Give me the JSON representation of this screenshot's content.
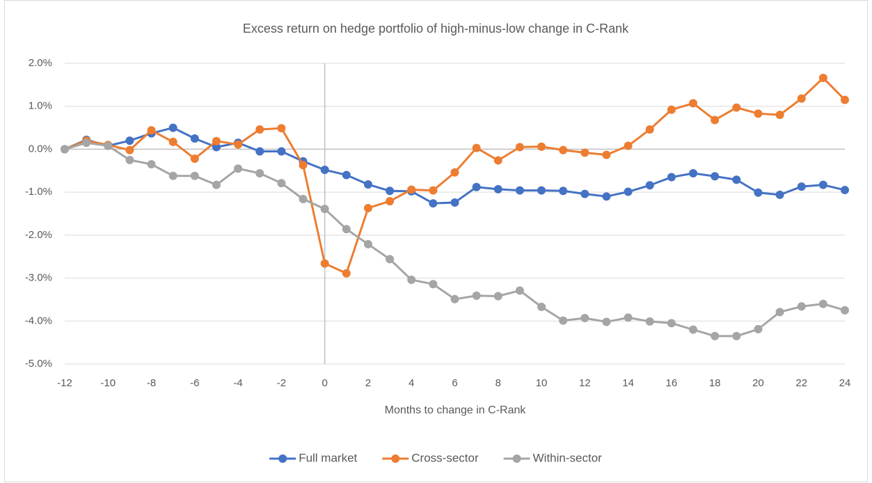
{
  "chart_data": {
    "type": "line",
    "title": "Excess return on hedge portfolio of high-minus-low change in C-Rank",
    "x_label": "Months to change in C-Rank",
    "x": [
      -12,
      -11,
      -10,
      -9,
      -8,
      -7,
      -6,
      -5,
      -4,
      -3,
      -2,
      -1,
      0,
      1,
      2,
      3,
      4,
      5,
      6,
      7,
      8,
      9,
      10,
      11,
      12,
      13,
      14,
      15,
      16,
      17,
      18,
      19,
      20,
      21,
      22,
      23,
      24
    ],
    "series": [
      {
        "name": "Full market",
        "color": "#4472c4",
        "values": [
          0,
          0.22,
          0.08,
          0.2,
          0.37,
          0.5,
          0.25,
          0.05,
          0.15,
          -0.05,
          -0.05,
          -0.28,
          -0.48,
          -0.6,
          -0.82,
          -0.97,
          -0.98,
          -1.26,
          -1.24,
          -0.88,
          -0.93,
          -0.96,
          -0.96,
          -0.97,
          -1.04,
          -1.1,
          -0.99,
          -0.84,
          -0.65,
          -0.56,
          -0.63,
          -0.71,
          -1.01,
          -1.06,
          -0.87,
          -0.83,
          -0.95
        ]
      },
      {
        "name": "Cross-sector",
        "color": "#ed7d31",
        "values": [
          0,
          0.2,
          0.1,
          -0.02,
          0.44,
          0.17,
          -0.22,
          0.19,
          0.11,
          0.46,
          0.49,
          -0.37,
          -2.66,
          -2.89,
          -1.37,
          -1.21,
          -0.94,
          -0.96,
          -0.54,
          0.03,
          -0.26,
          0.05,
          0.06,
          -0.02,
          -0.08,
          -0.13,
          0.08,
          0.46,
          0.92,
          1.07,
          0.68,
          0.97,
          0.83,
          0.8,
          1.18,
          1.66,
          1.15
        ]
      },
      {
        "name": "Within-sector",
        "color": "#a5a5a5",
        "values": [
          0,
          0.15,
          0.08,
          -0.25,
          -0.35,
          -0.62,
          -0.62,
          -0.83,
          -0.45,
          -0.56,
          -0.79,
          -1.16,
          -1.39,
          -1.86,
          -2.21,
          -2.56,
          -3.04,
          -3.14,
          -3.49,
          -3.41,
          -3.42,
          -3.29,
          -3.67,
          -3.99,
          -3.93,
          -4.02,
          -3.92,
          -4.01,
          -4.05,
          -4.2,
          -4.35,
          -4.35,
          -4.19,
          -3.79,
          -3.66,
          -3.6,
          -3.75
        ]
      }
    ],
    "xlim": [
      -12,
      24
    ],
    "xticks": [
      -12,
      -10,
      -8,
      -6,
      -4,
      -2,
      0,
      2,
      4,
      6,
      8,
      10,
      12,
      14,
      16,
      18,
      20,
      22,
      24
    ],
    "ylim": [
      -5,
      2
    ],
    "yticks": [
      {
        "value": -5,
        "label": "-5.0%"
      },
      {
        "value": -4,
        "label": "-4.0%"
      },
      {
        "value": -3,
        "label": "-3.0%"
      },
      {
        "value": -2,
        "label": "-2.0%"
      },
      {
        "value": -1,
        "label": "-1.0%"
      },
      {
        "value": 0,
        "label": "0.0%"
      },
      {
        "value": 1,
        "label": "1.0%"
      },
      {
        "value": 2,
        "label": "2.0%"
      }
    ],
    "grid": true,
    "legend": "bottom"
  }
}
